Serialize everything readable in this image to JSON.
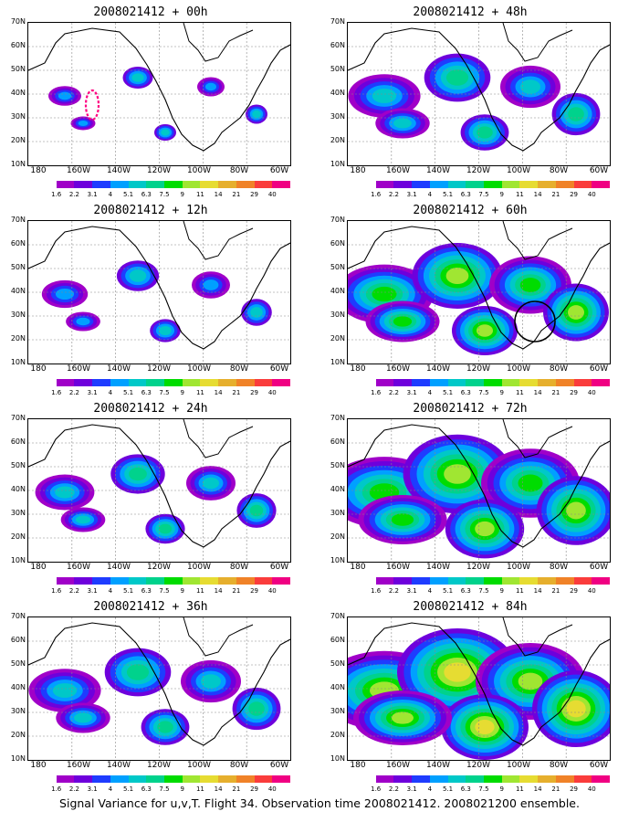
{
  "panels": [
    {
      "title": "2008021412 + 00h",
      "lead": "00h"
    },
    {
      "title": "2008021412 + 48h",
      "lead": "48h"
    },
    {
      "title": "2008021412 + 12h",
      "lead": "12h"
    },
    {
      "title": "2008021412 + 60h",
      "lead": "60h"
    },
    {
      "title": "2008021412 + 24h",
      "lead": "24h"
    },
    {
      "title": "2008021412 + 72h",
      "lead": "72h"
    },
    {
      "title": "2008021412 + 36h",
      "lead": "36h"
    },
    {
      "title": "2008021412 + 84h",
      "lead": "84h"
    }
  ],
  "lat_labels": [
    "70N",
    "60N",
    "50N",
    "40N",
    "30N",
    "20N",
    "10N"
  ],
  "lon_labels": [
    "180",
    "160W",
    "140W",
    "120W",
    "100W",
    "80W",
    "60W"
  ],
  "colorbar": {
    "values": [
      "1.6",
      "2.2",
      "3.1",
      "4",
      "5.1",
      "6.3",
      "7.5",
      "9",
      "11",
      "14",
      "21",
      "29",
      "40"
    ],
    "colors": [
      "#ffffff",
      "#a000c8",
      "#6e00dc",
      "#1e3cff",
      "#00a0ff",
      "#00c8c8",
      "#00d28c",
      "#00dc00",
      "#a0e632",
      "#e6dc32",
      "#e6af2d",
      "#f08228",
      "#fa3c3c",
      "#f00082"
    ]
  },
  "caption": "Signal Variance for u,v,T. Flight 34. Observation time 2008021412. 2008021200 ensemble."
}
